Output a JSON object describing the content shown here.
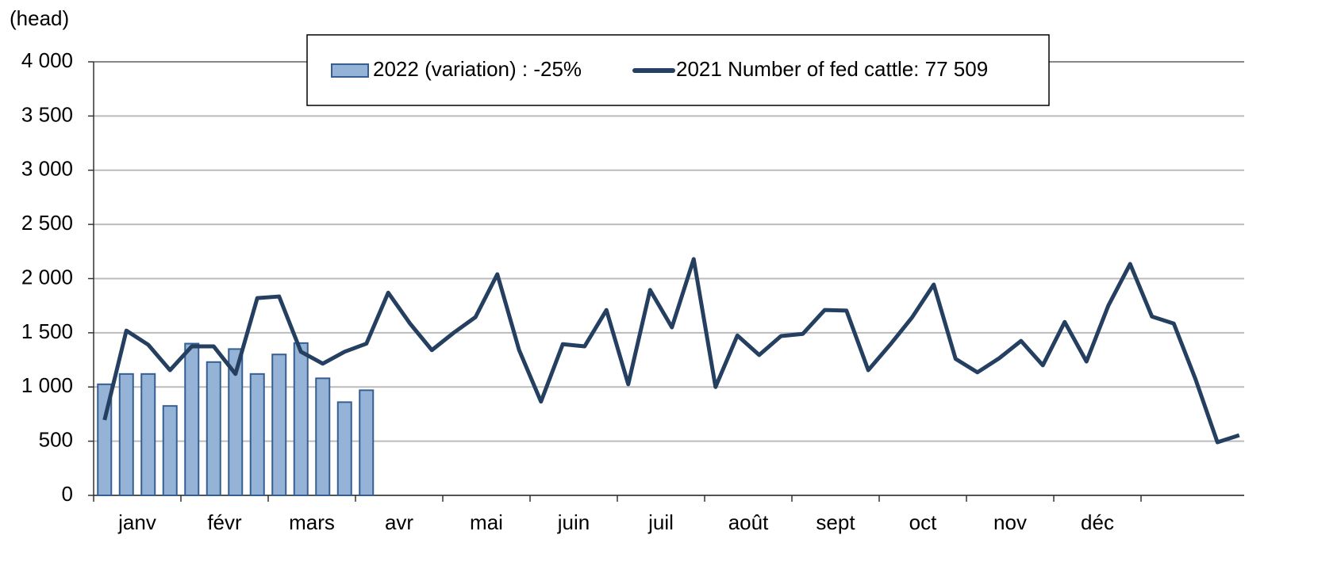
{
  "chart_data": {
    "type": "bar_line",
    "y_label": "(head)",
    "categories": [
      null,
      null,
      null,
      null,
      null,
      null,
      null,
      null,
      null,
      null,
      null,
      null,
      null,
      null,
      null,
      null,
      null,
      null,
      null,
      null,
      null,
      null,
      null,
      null,
      null,
      null,
      null,
      null,
      null,
      null,
      null,
      null,
      null,
      null,
      null,
      null,
      null,
      null,
      null,
      null,
      null,
      null,
      null,
      null,
      null,
      null,
      null,
      null,
      null,
      null,
      null,
      null,
      null
    ],
    "months": [
      "janv",
      "févr",
      "mars",
      "avr",
      "mai",
      "juin",
      "juil",
      "août",
      "sept",
      "oct",
      "nov",
      "déc"
    ],
    "series": [
      {
        "name": "2022 (variation) : -25%",
        "type": "bar",
        "color": "#95b3d7",
        "values": [
          1025,
          1120,
          1120,
          825,
          1400,
          1230,
          1350,
          1120,
          1300,
          1405,
          1080,
          860,
          970,
          null,
          null,
          null,
          null,
          null,
          null,
          null,
          null,
          null,
          null,
          null,
          null,
          null,
          null,
          null,
          null,
          null,
          null,
          null,
          null,
          null,
          null,
          null,
          null,
          null,
          null,
          null,
          null,
          null,
          null,
          null,
          null,
          null,
          null,
          null,
          null,
          null,
          null,
          null,
          null
        ]
      },
      {
        "name": "2021 Number of fed cattle: 77 509",
        "type": "line",
        "color": "#243f60",
        "values": [
          695,
          1520,
          1390,
          1155,
          1375,
          1375,
          1120,
          1820,
          1835,
          1325,
          1215,
          1325,
          1400,
          1870,
          1585,
          1340,
          1500,
          1645,
          2040,
          1340,
          865,
          1395,
          1375,
          1710,
          1025,
          1895,
          1550,
          2180,
          1000,
          1475,
          1295,
          1470,
          1490,
          1710,
          1705,
          1155,
          1390,
          1640,
          1945,
          1260,
          1135,
          1265,
          1425,
          1200,
          1600,
          1235,
          1750,
          2135,
          1650,
          1585,
          1070,
          490,
          555
        ]
      }
    ],
    "ylim": [
      0,
      4000
    ],
    "yticks": [
      0,
      500,
      {
        "value": 1000,
        "label": "1 000"
      },
      {
        "value": 1500,
        "label": "1 500"
      },
      {
        "value": 2000,
        "label": "2 000"
      },
      {
        "value": 2500,
        "label": "2 500"
      },
      {
        "value": 3000,
        "label": "3 000"
      },
      {
        "value": 3500,
        "label": "3 500"
      },
      {
        "value": 4000,
        "label": "4 000"
      }
    ],
    "grid": true
  }
}
